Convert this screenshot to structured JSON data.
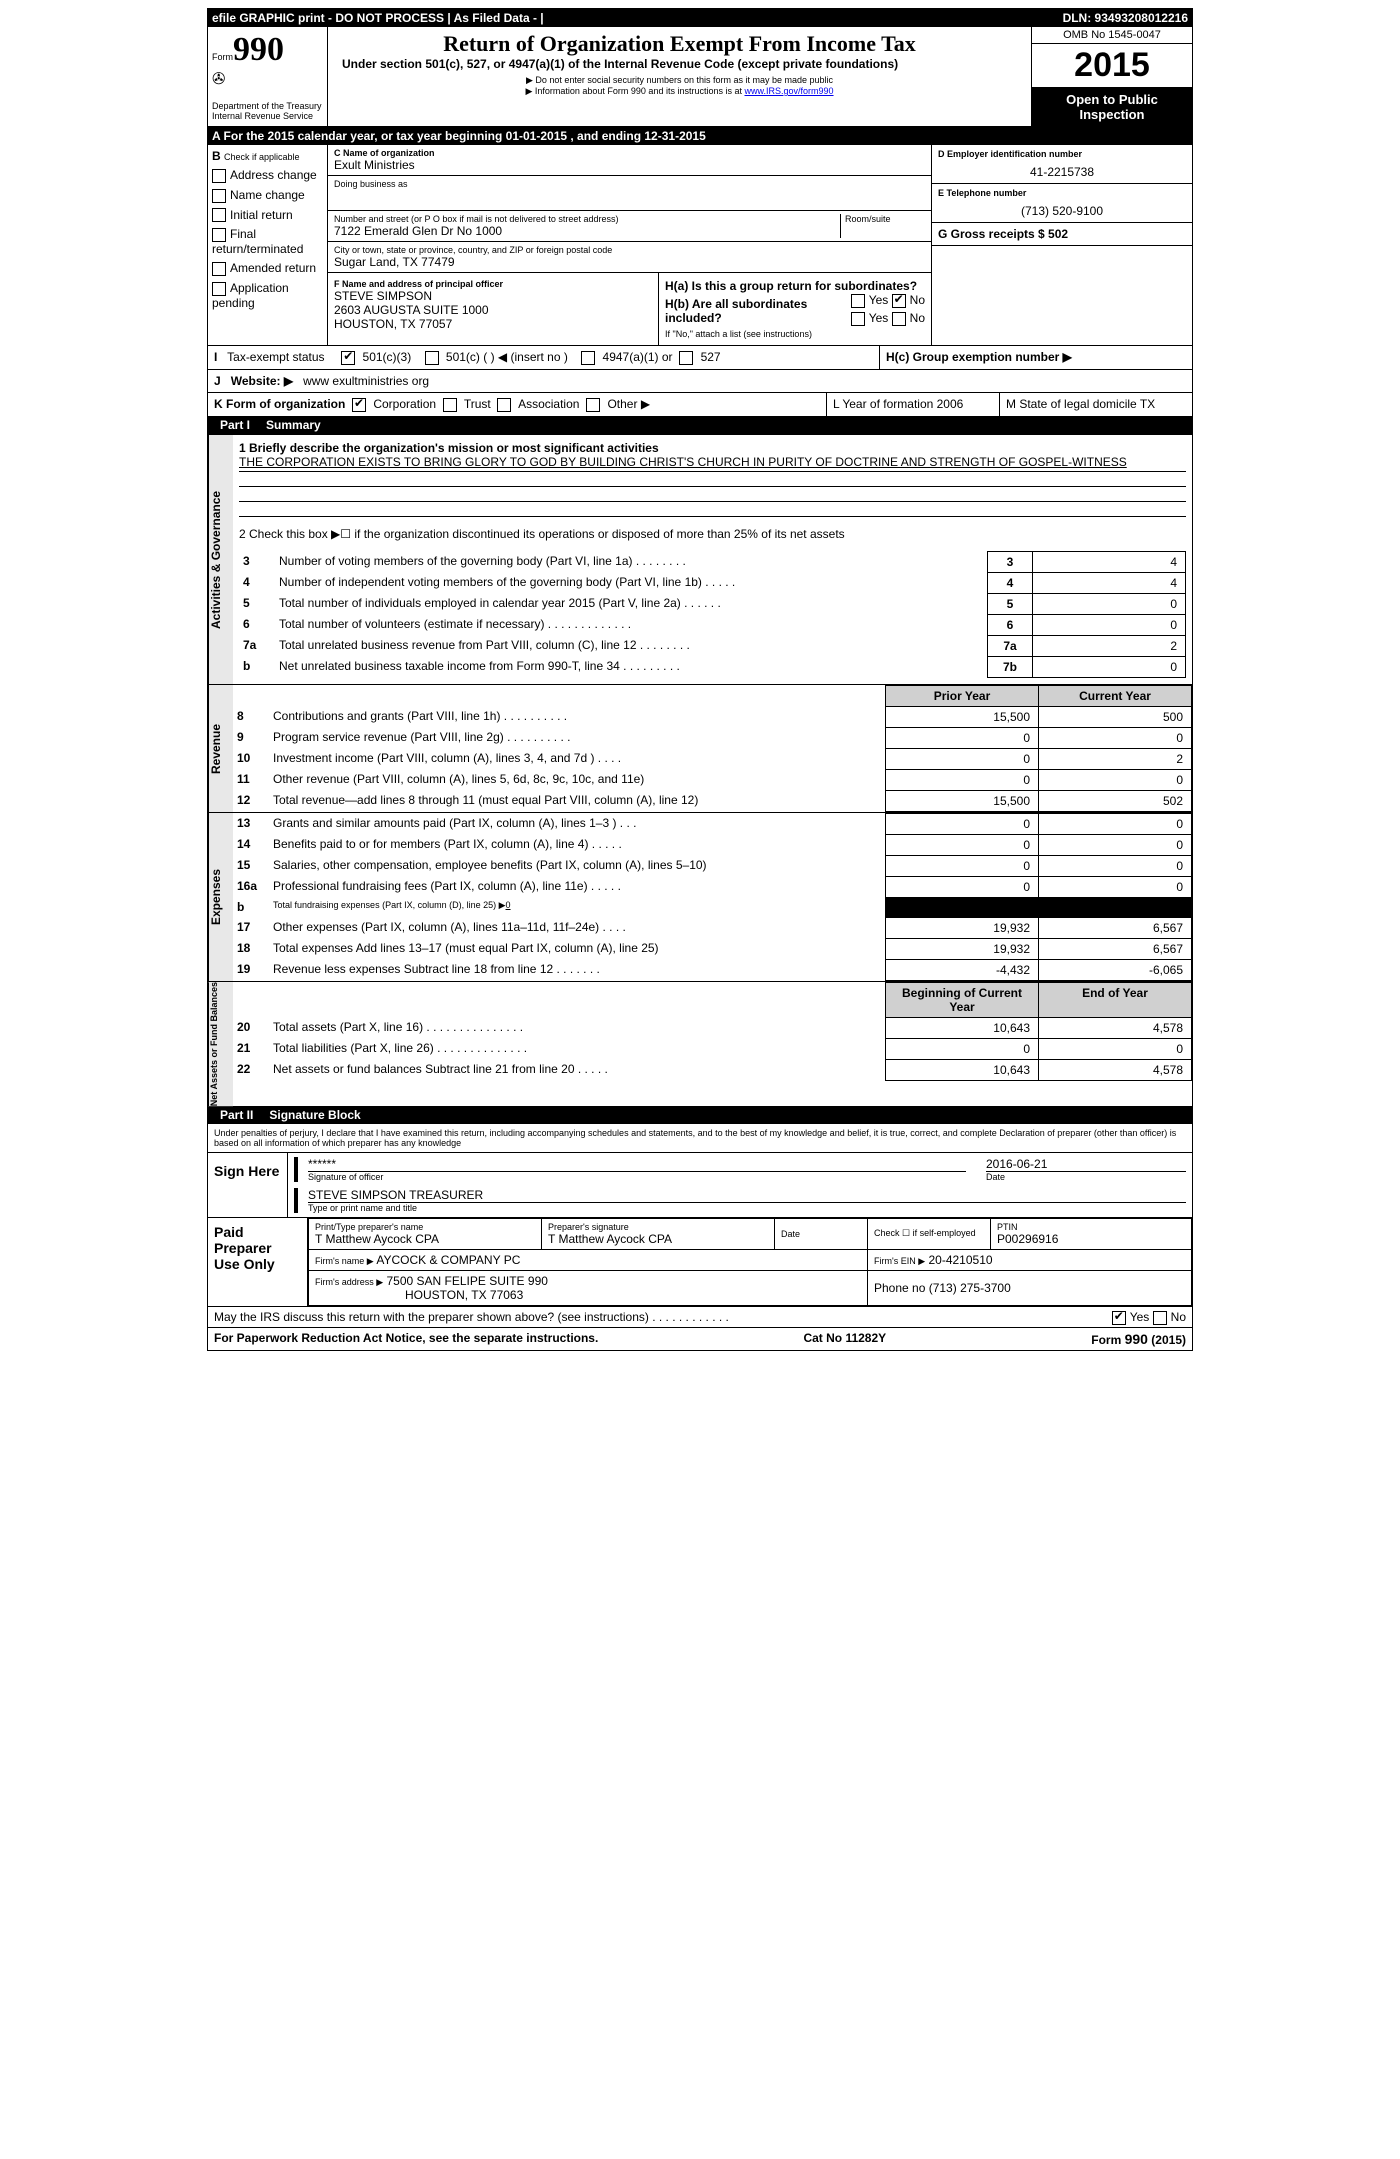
{
  "topbar": {
    "left": "efile GRAPHIC print - DO NOT PROCESS   | As Filed Data -  |",
    "right": "DLN: 93493208012216"
  },
  "header": {
    "form_label": "Form",
    "form_number": "990",
    "dept": "Department of the Treasury",
    "irs": "Internal Revenue Service",
    "title": "Return of Organization Exempt From Income Tax",
    "subtitle": "Under section 501(c), 527, or 4947(a)(1) of the Internal Revenue Code (except private foundations)",
    "note1": "▶ Do not enter social security numbers on this form as it may be made public",
    "note2_pre": "▶ Information about Form 990 and its instructions is at ",
    "note2_link": "www.IRS.gov/form990",
    "omb": "OMB No 1545-0047",
    "year": "2015",
    "inspect": "Open to Public Inspection"
  },
  "rowA": "A  For the 2015 calendar year, or tax year beginning 01-01-2015    , and ending 12-31-2015",
  "sectionB": {
    "label": "B",
    "sub": "Check if applicable",
    "items": [
      "Address change",
      "Name change",
      "Initial return",
      "Final return/terminated",
      "Amended return",
      "Application pending"
    ]
  },
  "sectionC": {
    "c_label": "C Name of organization",
    "org": "Exult Ministries",
    "dba_label": "Doing business as",
    "dba": "",
    "addr_label": "Number and street (or P O  box if mail is not delivered to street address)",
    "room_label": "Room/suite",
    "addr": "7122 Emerald Glen Dr No 1000",
    "city_label": "City or town, state or province, country, and ZIP or foreign postal code",
    "city": "Sugar Land, TX  77479",
    "f_label": "F   Name and address of principal officer",
    "f_name": "STEVE SIMPSON",
    "f_addr1": "2603 AUGUSTA SUITE 1000",
    "f_addr2": "HOUSTON, TX 77057"
  },
  "sectionD": {
    "d_label": "D Employer identification number",
    "ein": "41-2215738",
    "e_label": "E Telephone number",
    "phone": "(713) 520-9100",
    "g_label": "G Gross receipts $ 502"
  },
  "sectionH": {
    "ha": "H(a)  Is this a group return for subordinates?",
    "hb": "H(b)  Are all subordinates included?",
    "hb_note": "If \"No,\" attach a list  (see instructions)",
    "hc": "H(c)   Group exemption number ▶",
    "yes": "Yes",
    "no": "No"
  },
  "rowI": {
    "label": "I",
    "text": "Tax-exempt status",
    "opt1": "501(c)(3)",
    "opt2": "501(c) (   ) ◀ (insert no )",
    "opt3": "4947(a)(1) or",
    "opt4": "527"
  },
  "rowJ": {
    "label": "J",
    "text": "Website: ▶",
    "site": "www exultministries org"
  },
  "rowK": {
    "label": "K Form of organization",
    "opts": [
      "Corporation",
      "Trust",
      "Association",
      "Other ▶"
    ],
    "L": "L Year of formation  2006",
    "M": "M State of legal domicile  TX"
  },
  "partI": {
    "label": "Part I",
    "title": "Summary"
  },
  "gov": {
    "line1_label": "1 Briefly describe the organization's mission or most significant activities",
    "line1_text": "THE CORPORATION EXISTS TO BRING GLORY TO GOD BY BUILDING CHRIST'S CHURCH IN PURITY OF DOCTRINE AND STRENGTH OF GOSPEL-WITNESS",
    "line2": "2  Check this box ▶☐ if the organization discontinued its operations or disposed of more than 25% of its net assets",
    "rows": [
      {
        "n": "3",
        "t": "Number of voting members of the governing body (Part VI, line 1a)  .   .   .   .   .   .   .   .",
        "b": "3",
        "v": "4"
      },
      {
        "n": "4",
        "t": "Number of independent voting members of the governing body (Part VI, line 1b)  .   .   .   .   .",
        "b": "4",
        "v": "4"
      },
      {
        "n": "5",
        "t": "Total number of individuals employed in calendar year 2015 (Part V, line 2a)  .   .   .   .   .   .",
        "b": "5",
        "v": "0"
      },
      {
        "n": "6",
        "t": "Total number of volunteers (estimate if necessary)  .   .   .   .   .   .   .   .   .   .   .   .   .",
        "b": "6",
        "v": "0"
      },
      {
        "n": "7a",
        "t": "Total unrelated business revenue from Part VIII, column (C), line 12  .   .   .   .   .   .   .   .",
        "b": "7a",
        "v": "2"
      },
      {
        "n": "b",
        "t": "Net unrelated business taxable income from Form 990-T, line 34  .   .   .   .   .   .   .   .   .",
        "b": "7b",
        "v": "0"
      }
    ]
  },
  "pycy": {
    "prior": "Prior Year",
    "current": "Current Year"
  },
  "rev_rows": [
    {
      "n": "8",
      "t": "Contributions and grants (Part VIII, line 1h)  .   .   .   .   .   .   .   .   .   .",
      "p": "15,500",
      "c": "500"
    },
    {
      "n": "9",
      "t": "Program service revenue (Part VIII, line 2g)  .   .   .   .   .   .   .   .   .   .",
      "p": "0",
      "c": "0"
    },
    {
      "n": "10",
      "t": "Investment income (Part VIII, column (A), lines 3, 4, and 7d )  .   .   .   .",
      "p": "0",
      "c": "2"
    },
    {
      "n": "11",
      "t": "Other revenue (Part VIII, column (A), lines 5, 6d, 8c, 9c, 10c, and 11e)",
      "p": "0",
      "c": "0"
    },
    {
      "n": "12",
      "t": "Total revenue—add lines 8 through 11 (must equal Part VIII, column (A), line 12)",
      "p": "15,500",
      "c": "502"
    }
  ],
  "exp_rows": [
    {
      "n": "13",
      "t": "Grants and similar amounts paid (Part IX, column (A), lines 1–3 )  .   .   .",
      "p": "0",
      "c": "0"
    },
    {
      "n": "14",
      "t": "Benefits paid to or for members (Part IX, column (A), line 4)  .   .   .   .   .",
      "p": "0",
      "c": "0"
    },
    {
      "n": "15",
      "t": "Salaries, other compensation, employee benefits (Part IX, column (A), lines 5–10)",
      "p": "0",
      "c": "0"
    },
    {
      "n": "16a",
      "t": "Professional fundraising fees (Part IX, column (A), line 11e)  .   .   .   .   .",
      "p": "0",
      "c": "0"
    }
  ],
  "exp_16b": {
    "n": "b",
    "t": "Total fundraising expenses (Part IX, column (D), line 25) ▶",
    "v": "0"
  },
  "exp_rows2": [
    {
      "n": "17",
      "t": "Other expenses (Part IX, column (A), lines 11a–11d, 11f–24e)  .   .   .   .",
      "p": "19,932",
      "c": "6,567"
    },
    {
      "n": "18",
      "t": "Total expenses  Add lines 13–17 (must equal Part IX, column (A), line 25)",
      "p": "19,932",
      "c": "6,567"
    },
    {
      "n": "19",
      "t": "Revenue less expenses  Subtract line 18 from line 12  .   .   .   .   .   .   .",
      "p": "-4,432",
      "c": "-6,065"
    }
  ],
  "net_hdr": {
    "b": "Beginning of Current Year",
    "e": "End of Year"
  },
  "net_rows": [
    {
      "n": "20",
      "t": "Total assets (Part X, line 16)  .   .   .   .   .   .   .   .   .   .   .   .   .   .   .",
      "p": "10,643",
      "c": "4,578"
    },
    {
      "n": "21",
      "t": "Total liabilities (Part X, line 26)  .   .   .   .   .   .   .   .   .   .   .   .   .   .",
      "p": "0",
      "c": "0"
    },
    {
      "n": "22",
      "t": "Net assets or fund balances  Subtract line 21 from line 20  .   .   .   .   .",
      "p": "10,643",
      "c": "4,578"
    }
  ],
  "partII": {
    "label": "Part II",
    "title": "Signature Block"
  },
  "perjury": "Under penalties of perjury, I declare that I have examined this return, including accompanying schedules and statements, and to the best of my knowledge and belief, it is true, correct, and complete  Declaration of preparer (other than officer) is based on all information of which preparer has any knowledge",
  "sign": {
    "here": "Sign Here",
    "stars": "******",
    "sig_label": "Signature of officer",
    "date": "2016-06-21",
    "date_label": "Date",
    "name": "STEVE SIMPSON TREASURER",
    "name_label": "Type or print name and title"
  },
  "prep": {
    "label": "Paid Preparer Use Only",
    "h1": "Print/Type preparer's name",
    "v1": "T Matthew Aycock CPA",
    "h2": "Preparer's signature",
    "v2": "T Matthew Aycock CPA",
    "h3": "Date",
    "v3": "",
    "h4": "Check ☐ if self-employed",
    "h5": "PTIN",
    "v5": "P00296916",
    "firm_label": "Firm's name    ▶",
    "firm": "AYCOCK & COMPANY PC",
    "ein_label": "Firm's EIN ▶",
    "ein": "20-4210510",
    "addr_label": "Firm's address ▶",
    "addr": "7500 SAN FELIPE SUITE 990",
    "addr2": "HOUSTON, TX 77063",
    "phone_label": "Phone no  (713) 275-3700"
  },
  "discuss": "May the IRS discuss this return with the preparer shown above? (see instructions)  .   .   .   .   .   .   .   .   .   .   .   .",
  "footer": {
    "left": "For Paperwork Reduction Act Notice, see the separate instructions.",
    "mid": "Cat No  11282Y",
    "right": "Form 990 (2015)"
  },
  "side_labels": {
    "gov": "Activities & Governance",
    "rev": "Revenue",
    "exp": "Expenses",
    "net": "Net Assets or Fund Balances"
  }
}
